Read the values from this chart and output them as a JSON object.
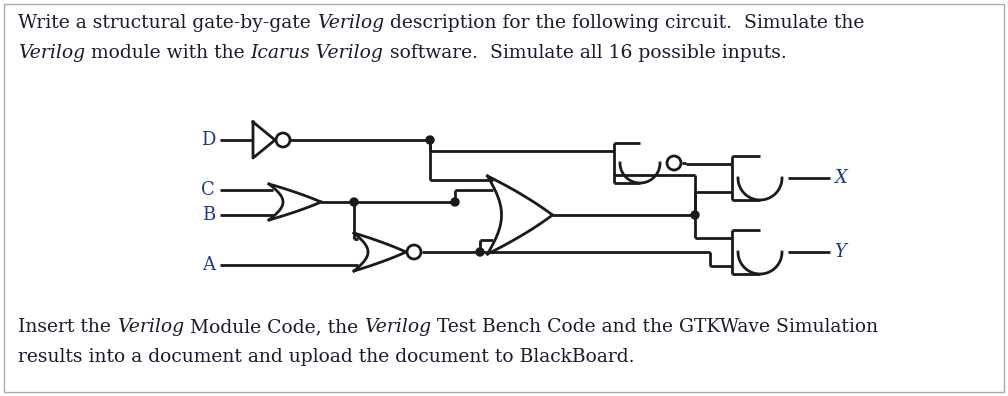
{
  "bg_color": "#ffffff",
  "text_color": "#1a1a2e",
  "line_color": "#1a1a1a",
  "label_color": "#1a3a8a",
  "line_width": 2.0,
  "fig_width": 10.08,
  "fig_height": 3.96,
  "dpi": 100,
  "top_line1": [
    [
      "Write a structural gate-by-gate ",
      "normal"
    ],
    [
      "Verilog",
      "italic"
    ],
    [
      " description for the following circuit.  Simulate the",
      "normal"
    ]
  ],
  "top_line2": [
    [
      "Verilog",
      "italic"
    ],
    [
      " module with the ",
      "normal"
    ],
    [
      "Icarus Verilog",
      "italic"
    ],
    [
      " software.  Simulate all 16 possible inputs.",
      "normal"
    ]
  ],
  "bot_line1": [
    [
      "Insert the ",
      "normal"
    ],
    [
      "Verilog",
      "italic"
    ],
    [
      " Module Code, the ",
      "normal"
    ],
    [
      "Verilog",
      "italic"
    ],
    [
      " Test Bench Code and the GTKWave Simulation",
      "normal"
    ]
  ],
  "bot_line2": [
    [
      "results into a document and upload the document to BlackBoard.",
      "normal"
    ]
  ]
}
